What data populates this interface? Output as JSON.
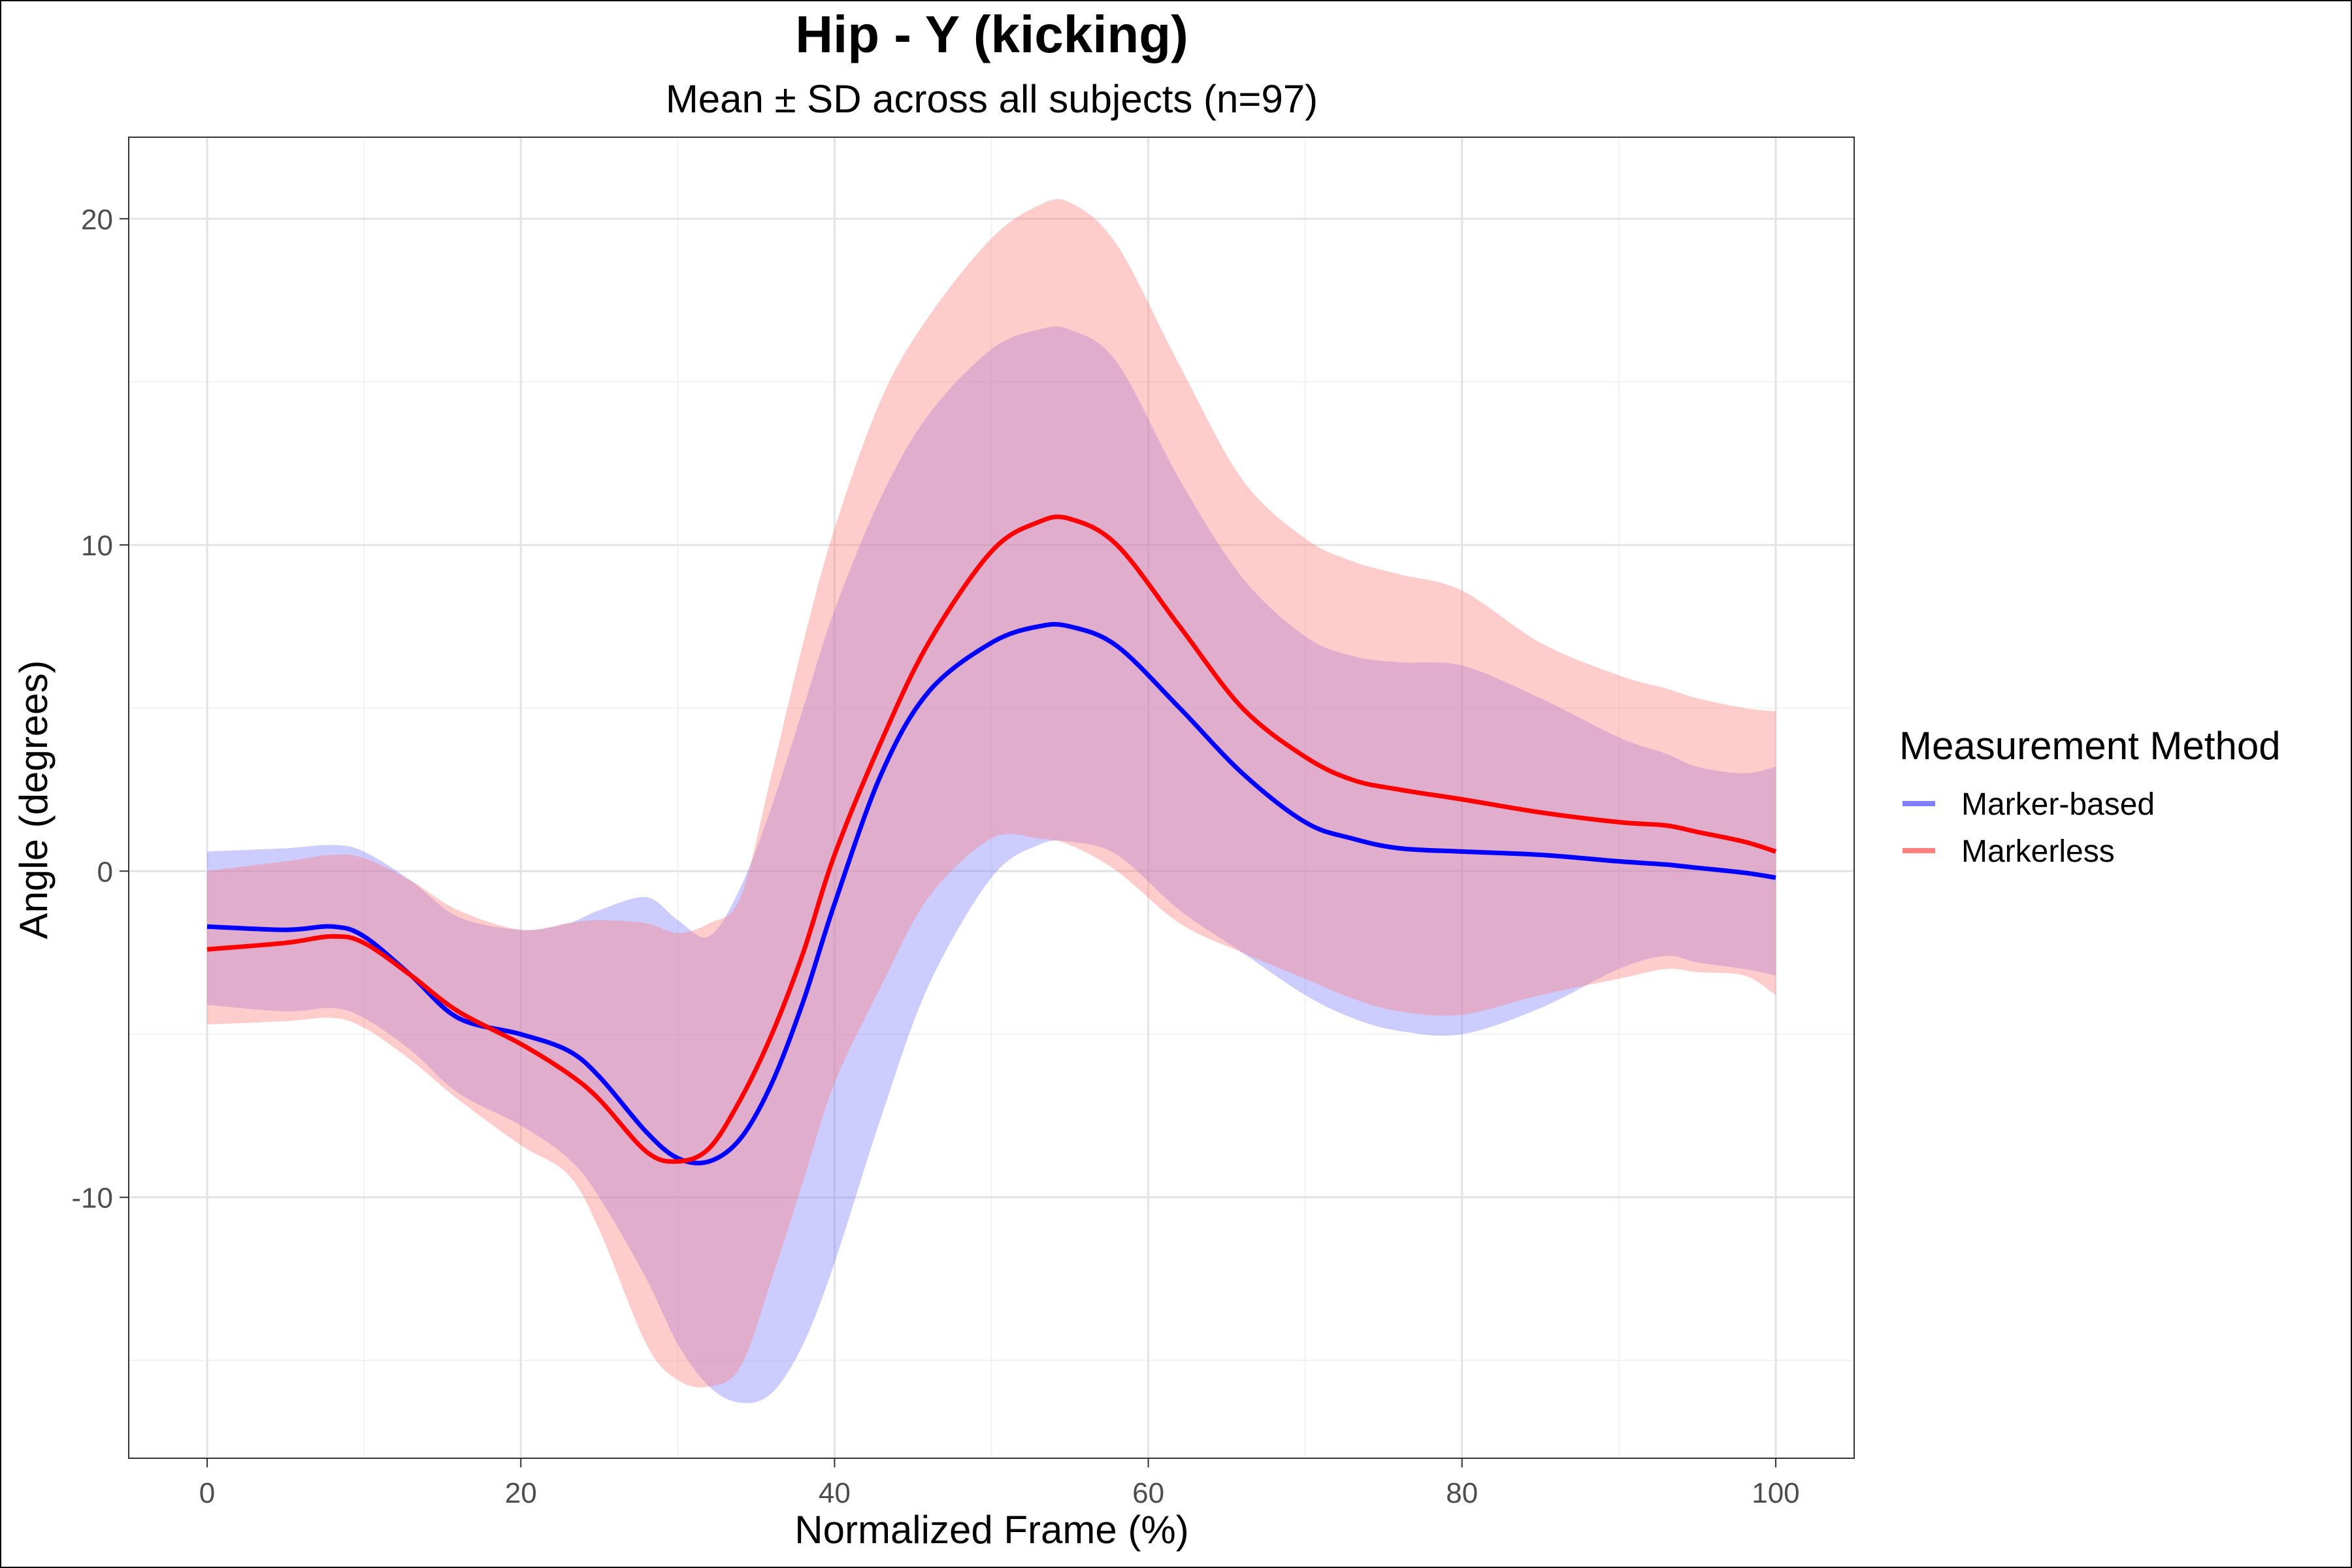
{
  "chart_data": {
    "type": "line",
    "title": "Hip - Y (kicking)",
    "subtitle": "Mean ± SD across all subjects (n=97)",
    "xlabel": "Normalized Frame (%)",
    "ylabel": "Angle (degrees)",
    "xlim": [
      -5,
      105
    ],
    "ylim": [
      -18,
      22.5
    ],
    "x_ticks": [
      0,
      20,
      40,
      60,
      80,
      100
    ],
    "y_ticks": [
      -10,
      0,
      10,
      20
    ],
    "grid": true,
    "legend": {
      "title": "Measurement Method",
      "position": "right"
    },
    "series": [
      {
        "name": "Marker-based",
        "color": "#0000ff",
        "band_color": "#8080ff",
        "x": [
          0,
          5,
          8,
          10,
          13,
          16,
          20,
          23,
          25,
          28,
          30,
          32,
          34,
          36,
          38,
          40,
          43,
          46,
          50,
          53,
          55,
          58,
          62,
          66,
          70,
          73,
          76,
          80,
          85,
          90,
          93,
          95,
          98,
          100
        ],
        "mean": [
          -1.7,
          -1.8,
          -1.7,
          -2.0,
          -3.2,
          -4.5,
          -5.0,
          -5.5,
          -6.3,
          -8.0,
          -8.8,
          -8.9,
          -8.2,
          -6.5,
          -4.0,
          -1.0,
          3.0,
          5.5,
          7.0,
          7.5,
          7.5,
          6.9,
          5.0,
          3.0,
          1.5,
          1.0,
          0.7,
          0.6,
          0.5,
          0.3,
          0.2,
          0.1,
          -0.05,
          -0.2
        ],
        "upper": [
          0.6,
          0.7,
          0.8,
          0.6,
          -0.3,
          -1.4,
          -1.8,
          -1.6,
          -1.2,
          -0.8,
          -1.5,
          -2.0,
          -0.5,
          2.0,
          5.0,
          8.0,
          11.5,
          14.0,
          16.0,
          16.6,
          16.6,
          15.6,
          12.0,
          9.0,
          7.2,
          6.6,
          6.4,
          6.3,
          5.3,
          4.1,
          3.6,
          3.2,
          3.0,
          3.2
        ],
        "lower": [
          -4.1,
          -4.3,
          -4.2,
          -4.5,
          -5.5,
          -6.8,
          -7.8,
          -8.8,
          -10.0,
          -12.5,
          -14.5,
          -15.8,
          -16.3,
          -16.0,
          -14.5,
          -12.0,
          -7.5,
          -3.5,
          -0.2,
          0.8,
          0.9,
          0.5,
          -1.2,
          -2.5,
          -3.8,
          -4.5,
          -4.9,
          -5.0,
          -4.2,
          -3.0,
          -2.6,
          -2.8,
          -3.0,
          -3.2
        ]
      },
      {
        "name": "Markerless",
        "color": "#ff0000",
        "band_color": "#ff8080",
        "x": [
          0,
          5,
          8,
          10,
          13,
          16,
          20,
          23,
          25,
          28,
          30,
          32,
          34,
          36,
          38,
          40,
          43,
          46,
          50,
          53,
          55,
          58,
          62,
          66,
          70,
          73,
          76,
          80,
          85,
          90,
          93,
          95,
          98,
          100
        ],
        "mean": [
          -2.4,
          -2.2,
          -2.0,
          -2.2,
          -3.2,
          -4.3,
          -5.3,
          -6.2,
          -7.0,
          -8.6,
          -8.9,
          -8.5,
          -7.0,
          -5.0,
          -2.5,
          0.5,
          4.0,
          7.0,
          9.8,
          10.7,
          10.8,
          10.0,
          7.5,
          5.0,
          3.5,
          2.8,
          2.5,
          2.2,
          1.8,
          1.5,
          1.4,
          1.2,
          0.9,
          0.6
        ],
        "upper": [
          0.0,
          0.3,
          0.5,
          0.4,
          -0.3,
          -1.2,
          -1.8,
          -1.6,
          -1.5,
          -1.6,
          -1.9,
          -1.6,
          -0.8,
          3.0,
          7.0,
          10.5,
          14.5,
          17.0,
          19.4,
          20.4,
          20.5,
          19.2,
          15.5,
          12.0,
          10.2,
          9.5,
          9.1,
          8.6,
          7.0,
          6.0,
          5.6,
          5.3,
          5.0,
          4.9
        ],
        "lower": [
          -4.7,
          -4.6,
          -4.5,
          -4.8,
          -5.8,
          -7.0,
          -8.4,
          -9.3,
          -11.0,
          -14.5,
          -15.6,
          -15.8,
          -15.2,
          -12.5,
          -9.5,
          -6.5,
          -3.5,
          -0.8,
          1.0,
          1.0,
          0.8,
          0.0,
          -1.6,
          -2.5,
          -3.3,
          -3.9,
          -4.3,
          -4.4,
          -3.8,
          -3.3,
          -3.0,
          -3.1,
          -3.2,
          -3.8
        ]
      }
    ]
  }
}
